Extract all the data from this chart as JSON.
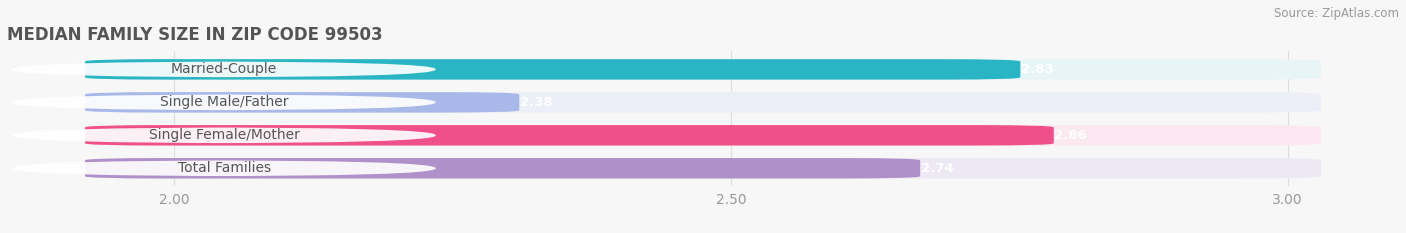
{
  "title": "MEDIAN FAMILY SIZE IN ZIP CODE 99503",
  "source": "Source: ZipAtlas.com",
  "categories": [
    "Married-Couple",
    "Single Male/Father",
    "Single Female/Mother",
    "Total Families"
  ],
  "values": [
    2.83,
    2.38,
    2.86,
    2.74
  ],
  "bar_colors": [
    "#29b5c3",
    "#a8b8e8",
    "#f0508a",
    "#b090c8"
  ],
  "bar_bg_colors": [
    "#e8f5f6",
    "#eceef8",
    "#fce8f0",
    "#ece8f4"
  ],
  "xlim_data": [
    1.85,
    3.1
  ],
  "xmin": 1.85,
  "xmax": 3.1,
  "xticks": [
    2.0,
    2.5,
    3.0
  ],
  "xtick_labels": [
    "2.00",
    "2.50",
    "3.00"
  ],
  "label_fontsize": 10,
  "value_fontsize": 9.5,
  "title_fontsize": 12,
  "title_color": "#555555",
  "source_color": "#999999",
  "background_color": "#f7f7f7",
  "tick_color": "#999999",
  "grid_color": "#dddddd",
  "label_text_color": "#555555"
}
